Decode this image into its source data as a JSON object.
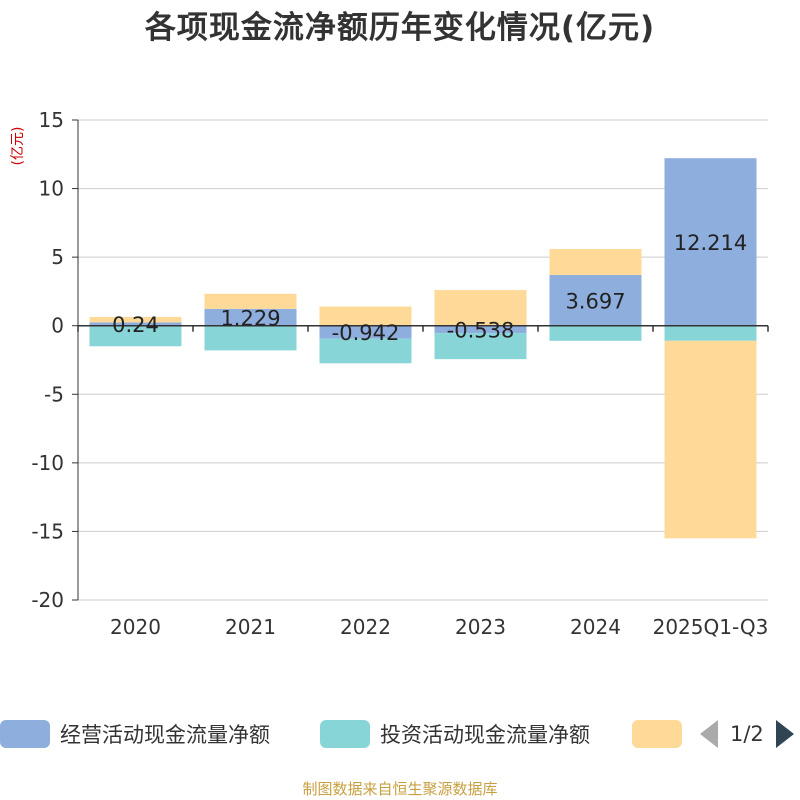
{
  "title": "各项现金流净额历年变化情况(亿元)",
  "source": "制图数据来自恒生聚源数据库",
  "pager": {
    "label": "1/2"
  },
  "chart_data": {
    "type": "bar",
    "stacked": true,
    "title": "各项现金流净额历年变化情况(亿元)",
    "ylabel": "(亿元)",
    "xlabel": "",
    "ylim": [
      -20,
      15
    ],
    "yticks": [
      15,
      10,
      5,
      0,
      -5,
      -10,
      -15,
      -20
    ],
    "categories": [
      "2020",
      "2021",
      "2022",
      "2023",
      "2024",
      "2025Q1-Q3"
    ],
    "series": [
      {
        "name": "经营活动现金流量净额",
        "color": "#8eaedd",
        "values": [
          0.24,
          1.229,
          -0.942,
          -0.538,
          3.697,
          12.214
        ],
        "labels": [
          "0.24",
          "1.229",
          "-0.942",
          "-0.538",
          "3.697",
          "12.214"
        ]
      },
      {
        "name": "投资活动现金流量净额",
        "color": "#88d5d8",
        "values": [
          -1.5,
          -1.8,
          -1.8,
          -1.9,
          -1.1,
          -1.1
        ]
      },
      {
        "name": "",
        "color": "#fed997",
        "values": [
          0.4,
          1.1,
          1.4,
          2.6,
          1.9,
          -14.4
        ]
      }
    ],
    "legend_position": "bottom",
    "grid": true
  }
}
